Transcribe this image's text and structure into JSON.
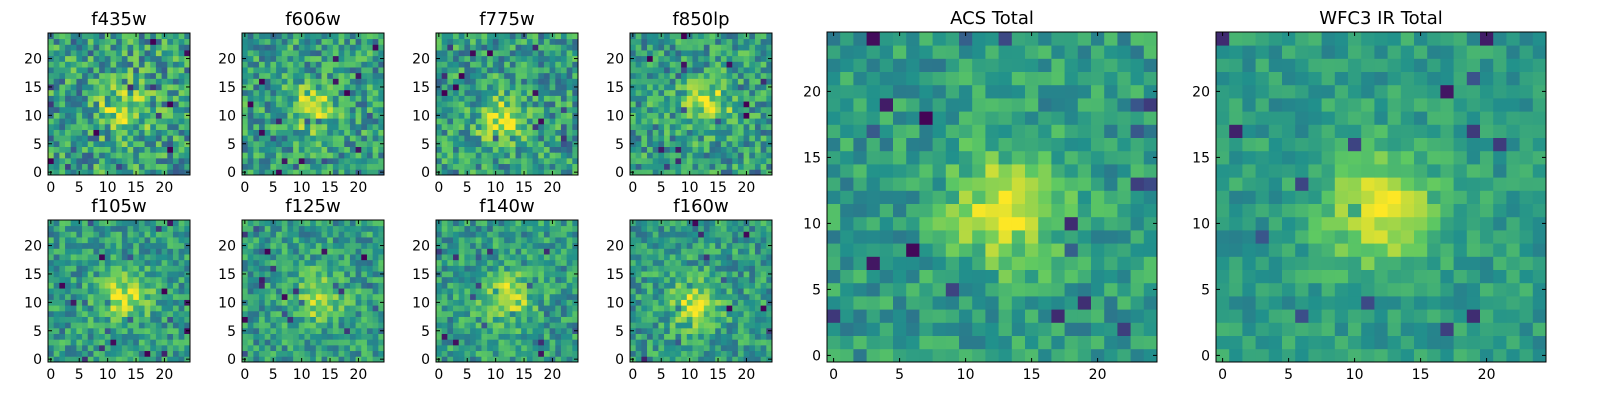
{
  "figure": {
    "colormap": "viridis",
    "colormap_stops": [
      "#440154",
      "#3b528b",
      "#21918c",
      "#5ec962",
      "#fde725"
    ]
  },
  "chart_data": [
    {
      "type": "heatmap",
      "title": "f435w",
      "shape": [
        25,
        25
      ],
      "xlim": [
        -0.5,
        24.5
      ],
      "ylim": [
        -0.5,
        24.5
      ],
      "xticks": [
        0,
        5,
        10,
        15,
        20
      ],
      "yticks": [
        0,
        5,
        10,
        15,
        20
      ],
      "source_blob": {
        "center": [
          13,
          11
        ],
        "peak": 0.7
      },
      "noise_level": 0.35
    },
    {
      "type": "heatmap",
      "title": "f606w",
      "shape": [
        25,
        25
      ],
      "xlim": [
        -0.5,
        24.5
      ],
      "ylim": [
        -0.5,
        24.5
      ],
      "xticks": [
        0,
        5,
        10,
        15,
        20
      ],
      "yticks": [
        0,
        5,
        10,
        15,
        20
      ],
      "source_blob": {
        "center": [
          12,
          11
        ],
        "peak": 0.75
      },
      "noise_level": 0.3
    },
    {
      "type": "heatmap",
      "title": "f775w",
      "shape": [
        25,
        25
      ],
      "xlim": [
        -0.5,
        24.5
      ],
      "ylim": [
        -0.5,
        24.5
      ],
      "xticks": [
        0,
        5,
        10,
        15,
        20
      ],
      "yticks": [
        0,
        5,
        10,
        15,
        20
      ],
      "source_blob": {
        "center": [
          11,
          9
        ],
        "peak": 0.8
      },
      "noise_level": 0.3
    },
    {
      "type": "heatmap",
      "title": "f850lp",
      "shape": [
        25,
        25
      ],
      "xlim": [
        -0.5,
        24.5
      ],
      "ylim": [
        -0.5,
        24.5
      ],
      "xticks": [
        0,
        5,
        10,
        15,
        20
      ],
      "yticks": [
        0,
        5,
        10,
        15,
        20
      ],
      "source_blob": {
        "center": [
          13,
          12
        ],
        "peak": 0.75
      },
      "noise_level": 0.3
    },
    {
      "type": "heatmap",
      "title": "f105w",
      "shape": [
        25,
        25
      ],
      "xlim": [
        -0.5,
        24.5
      ],
      "ylim": [
        -0.5,
        24.5
      ],
      "xticks": [
        0,
        5,
        10,
        15,
        20
      ],
      "yticks": [
        0,
        5,
        10,
        15,
        20
      ],
      "source_blob": {
        "center": [
          13,
          11
        ],
        "peak": 0.8
      },
      "noise_level": 0.25
    },
    {
      "type": "heatmap",
      "title": "f125w",
      "shape": [
        25,
        25
      ],
      "xlim": [
        -0.5,
        24.5
      ],
      "ylim": [
        -0.5,
        24.5
      ],
      "xticks": [
        0,
        5,
        10,
        15,
        20
      ],
      "yticks": [
        0,
        5,
        10,
        15,
        20
      ],
      "source_blob": {
        "center": [
          13,
          11
        ],
        "peak": 0.8
      },
      "noise_level": 0.25
    },
    {
      "type": "heatmap",
      "title": "f140w",
      "shape": [
        25,
        25
      ],
      "xlim": [
        -0.5,
        24.5
      ],
      "ylim": [
        -0.5,
        24.5
      ],
      "xticks": [
        0,
        5,
        10,
        15,
        20
      ],
      "yticks": [
        0,
        5,
        10,
        15,
        20
      ],
      "source_blob": {
        "center": [
          12,
          11
        ],
        "peak": 0.85
      },
      "noise_level": 0.25
    },
    {
      "type": "heatmap",
      "title": "f160w",
      "shape": [
        25,
        25
      ],
      "xlim": [
        -0.5,
        24.5
      ],
      "ylim": [
        -0.5,
        24.5
      ],
      "xticks": [
        0,
        5,
        10,
        15,
        20
      ],
      "yticks": [
        0,
        5,
        10,
        15,
        20
      ],
      "source_blob": {
        "center": [
          11,
          10
        ],
        "peak": 0.85
      },
      "noise_level": 0.25
    },
    {
      "type": "heatmap",
      "title": "ACS Total",
      "shape": [
        25,
        25
      ],
      "xlim": [
        -0.5,
        24.5
      ],
      "ylim": [
        -0.5,
        24.5
      ],
      "xticks": [
        0,
        5,
        10,
        15,
        20
      ],
      "yticks": [
        0,
        5,
        10,
        15,
        20
      ],
      "source_blob": {
        "center": [
          13,
          11
        ],
        "peak": 0.85
      },
      "noise_level": 0.2
    },
    {
      "type": "heatmap",
      "title": "WFC3 IR Total",
      "shape": [
        25,
        25
      ],
      "xlim": [
        -0.5,
        24.5
      ],
      "ylim": [
        -0.5,
        24.5
      ],
      "xticks": [
        0,
        5,
        10,
        15,
        20
      ],
      "yticks": [
        0,
        5,
        10,
        15,
        20
      ],
      "source_blob": {
        "center": [
          12,
          11
        ],
        "peak": 0.9
      },
      "noise_level": 0.15
    }
  ]
}
